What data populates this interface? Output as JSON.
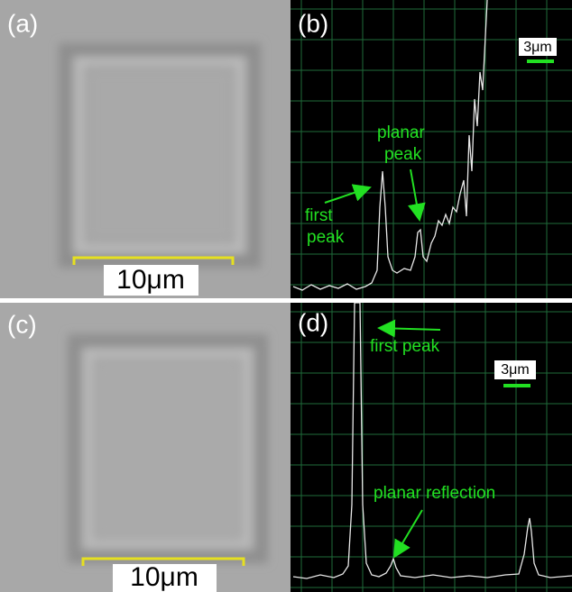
{
  "panels": [
    {
      "label": "(a)",
      "scale_bar": "10μm"
    },
    {
      "label": "(b)",
      "scale_bar": "3μm",
      "annotations": [
        {
          "lines": [
            "first",
            "peak"
          ]
        },
        {
          "lines": [
            "planar",
            "peak"
          ]
        }
      ]
    },
    {
      "label": "(c)",
      "scale_bar": "10μm"
    },
    {
      "label": "(d)",
      "scale_bar": "3μm",
      "annotations": [
        {
          "lines": [
            "first peak"
          ]
        },
        {
          "lines": [
            "planar reflection"
          ]
        }
      ]
    }
  ]
}
